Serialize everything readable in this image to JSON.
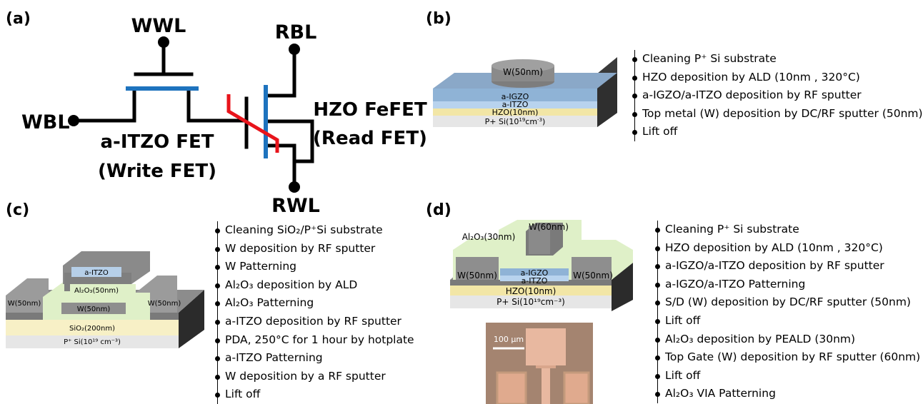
{
  "panels": {
    "a": "(a)",
    "b": "(b)",
    "c": "(c)",
    "d": "(d)"
  },
  "circuit": {
    "wwl": "WWL",
    "rbl": "RBL",
    "wbl": "WBL",
    "rwl": "RWL",
    "write_fet_1": "a-ITZO FET",
    "write_fet_2": "(Write FET)",
    "read_fet_1": "HZO FeFET",
    "read_fet_2": "(Read FET)",
    "colors": {
      "wire": "#000000",
      "channel": "#1e73be",
      "ferro": "#e8141b"
    }
  },
  "b": {
    "layers": {
      "top_metal": "W(50nm)",
      "igzo": "a-IGZO",
      "itzo": "a-ITZO",
      "hzo": "HZO(10nm)",
      "substrate": "P+ Si(10",
      "substrate_exp": "19",
      "substrate_unit": "cm",
      "substrate_unit_exp": "-3",
      "substrate_close": ")"
    },
    "steps": [
      "Cleaning P⁺ Si substrate",
      "HZO deposition by ALD (10nm , 320°C)",
      "a-IGZO/a-ITZO deposition by RF sputter",
      "Top metal (W) deposition by DC/RF sputter (50nm)",
      "Lift off"
    ]
  },
  "c": {
    "layers": {
      "itzo": "a-ITZO",
      "al2o3": "Al₂O₃(50nm)",
      "w_left": "W(50nm)",
      "w_mid": "W(50nm)",
      "w_right": "W(50nm)",
      "sio2": "SiO₂(200nm)",
      "substrate": "P⁺ Si(10¹⁹ cm⁻³)"
    },
    "steps": [
      "Cleaning SiO₂/P⁺Si substrate",
      "W deposition by RF sputter",
      "W Patterning",
      "Al₂O₃ deposition by ALD",
      "Al₂O₃ Patterning",
      "a-ITZO deposition by RF sputter",
      "PDA, 250°C for 1 hour by hotplate",
      "a-ITZO Patterning",
      "W deposition by a RF sputter",
      "Lift off"
    ]
  },
  "d": {
    "layers": {
      "top_gate": "W(60nm)",
      "al2o3": "Al₂O₃(30nm)",
      "w_left": "W(50nm)",
      "w_right": "W(50nm)",
      "igzo": "a-IGZO",
      "itzo": "a-ITZO",
      "hzo": "HZO(10nm)",
      "substrate": "P+ Si(10¹⁹cm⁻³)"
    },
    "scale_bar": "100 µm",
    "steps": [
      "Cleaning P⁺ Si substrate",
      "HZO deposition by ALD (10nm , 320°C)",
      "a-IGZO/a-ITZO deposition by RF sputter",
      "a-IGZO/a-ITZO Patterning",
      "S/D (W) deposition by DC/RF sputter (50nm)",
      "Lift off",
      "Al₂O₃ deposition by PEALD (30nm)",
      "Top Gate (W) deposition by RF sputter (60nm)",
      "Lift off",
      "Al₂O₃ VIA Patterning"
    ]
  }
}
